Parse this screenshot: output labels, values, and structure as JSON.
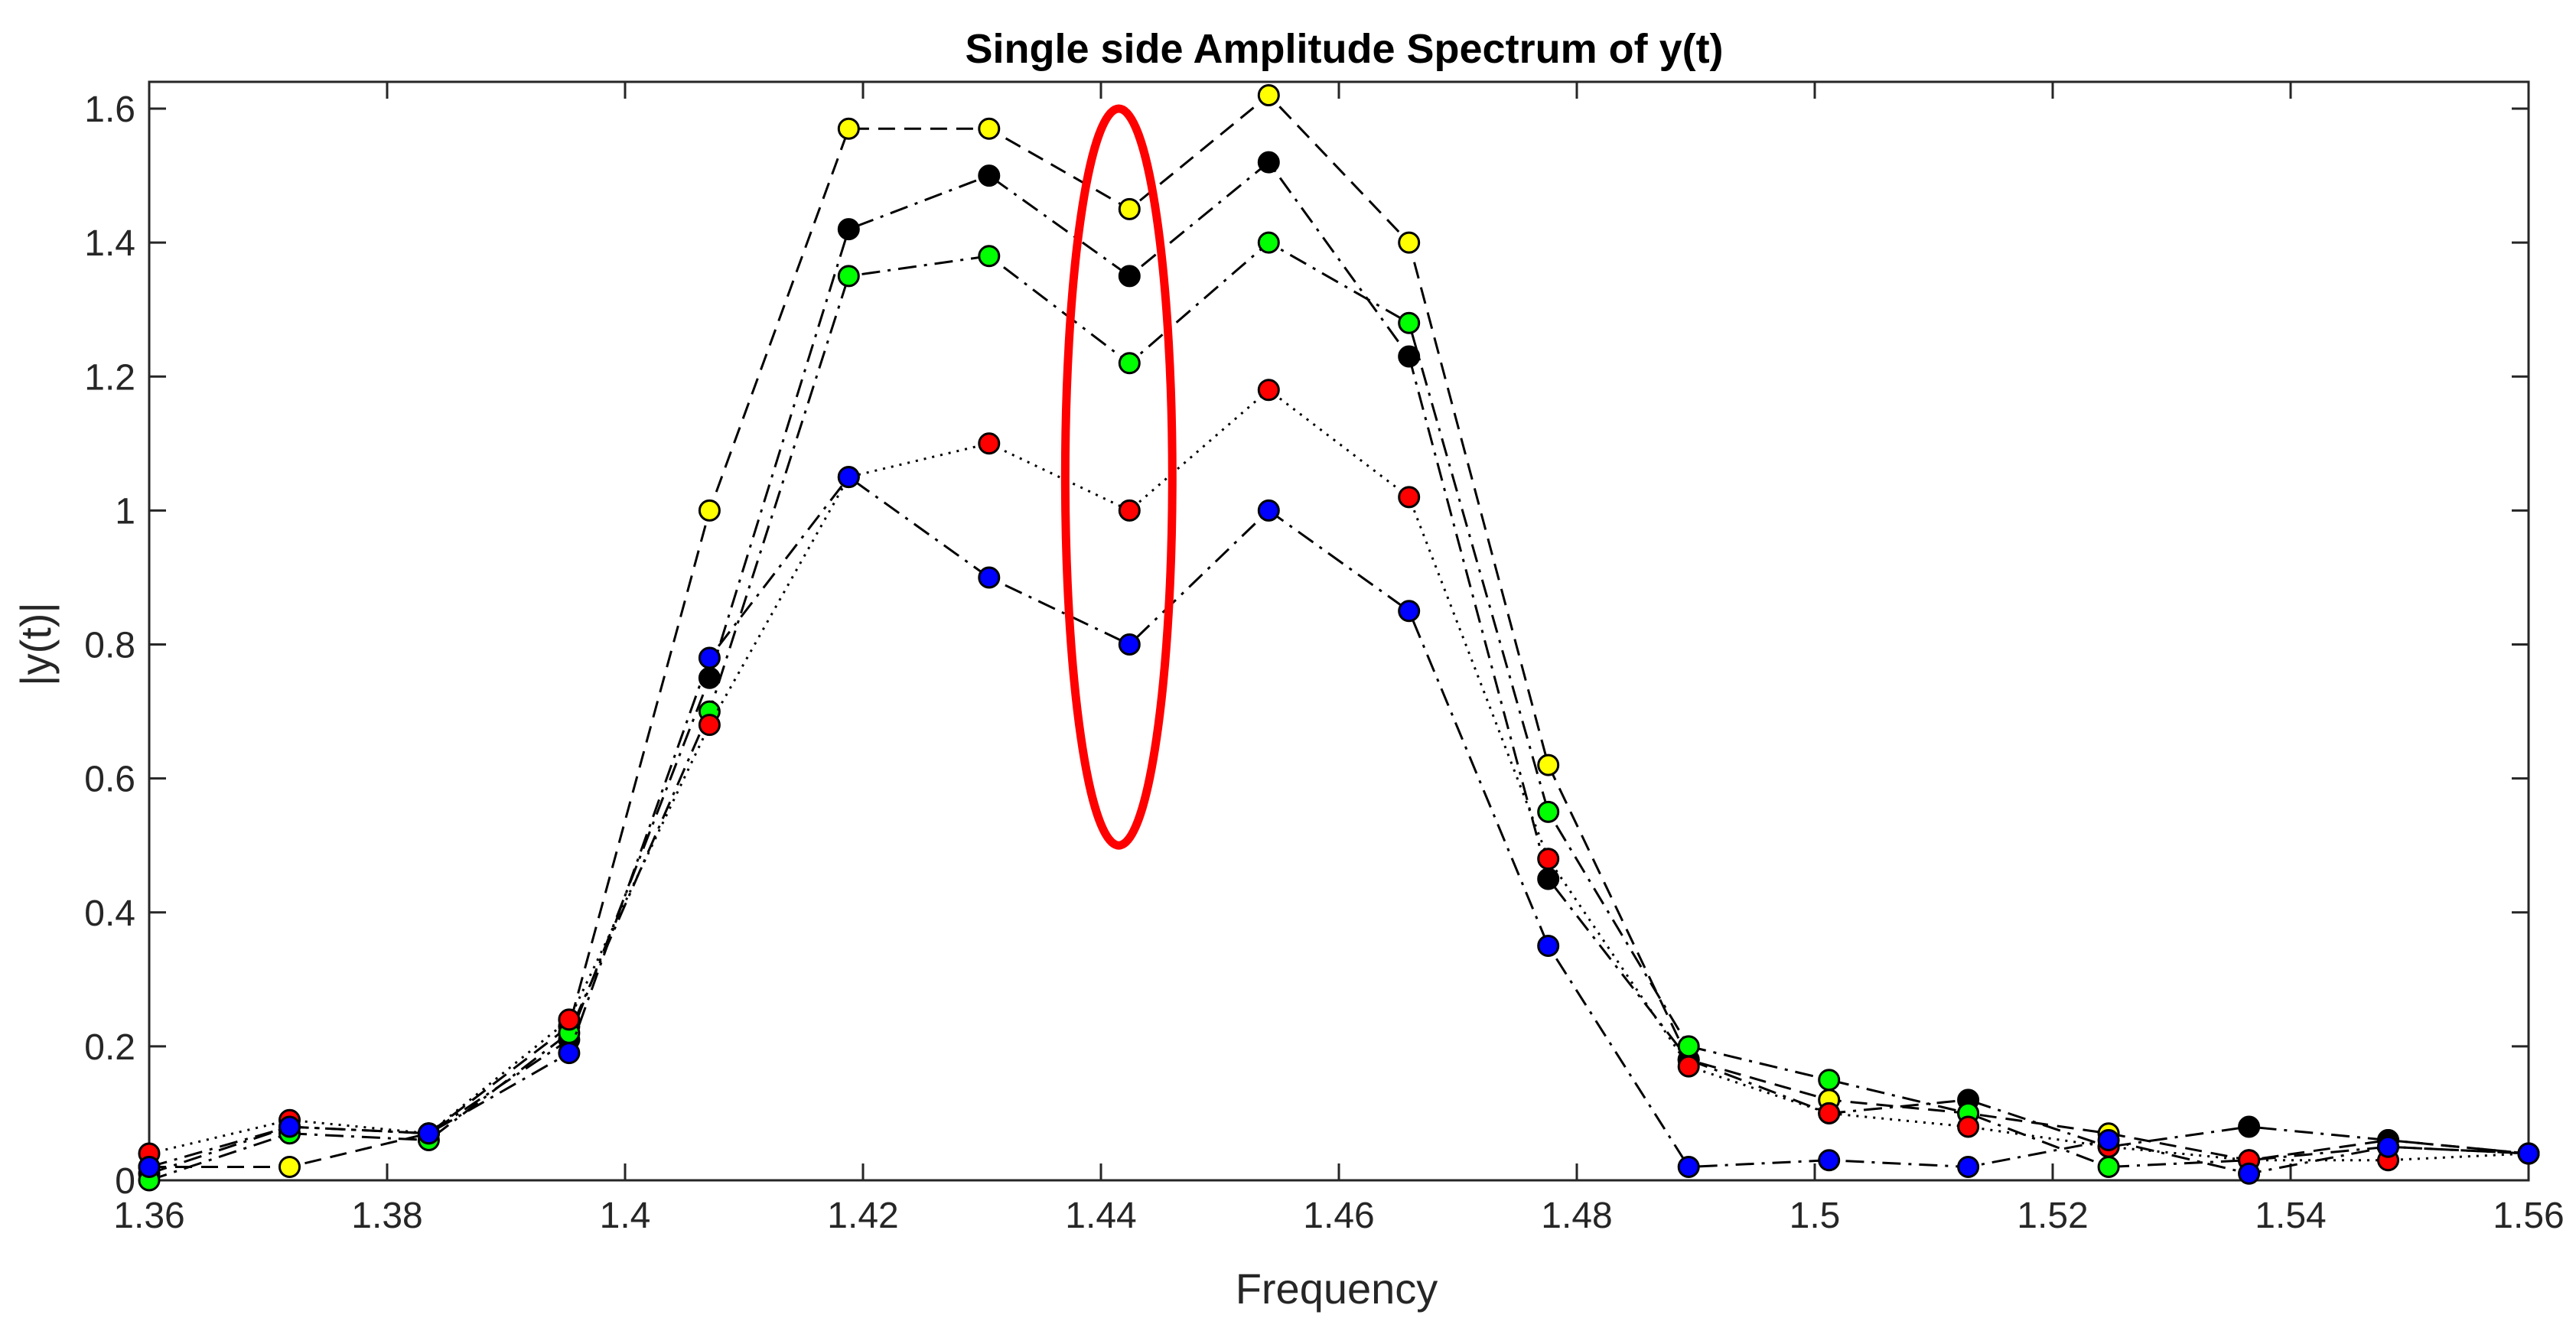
{
  "chart_data": {
    "type": "line",
    "title": "Single side Amplitude Spectrum of y(t)",
    "xlabel": "Frequency",
    "ylabel": "|y(t)|",
    "xlim": [
      1.36,
      1.56
    ],
    "ylim": [
      0,
      1.64
    ],
    "xticks": [
      "1.36",
      "1.38",
      "1.4",
      "1.42",
      "1.44",
      "1.46",
      "1.48",
      "1.5",
      "1.52",
      "1.54",
      "1.56"
    ],
    "yticks": [
      "0",
      "0.2",
      "0.4",
      "0.6",
      "0.8",
      "1",
      "1.2",
      "1.4",
      "1.6"
    ],
    "x": [
      1.36,
      1.3718,
      1.3835,
      1.3953,
      1.4071,
      1.4188,
      1.4306,
      1.4424,
      1.4541,
      1.4659,
      1.4776,
      1.4894,
      1.5012,
      1.5129,
      1.5247,
      1.5365,
      1.5482,
      1.56
    ],
    "series": [
      {
        "name": "yellow",
        "color": "#ffff00",
        "dash": "dashed",
        "values": [
          0.02,
          0.02,
          0.07,
          0.23,
          1.0,
          1.57,
          1.57,
          1.45,
          1.62,
          1.4,
          0.62,
          0.18,
          0.12,
          0.1,
          0.07,
          0.03,
          0.06,
          0.04
        ]
      },
      {
        "name": "black",
        "color": "#000000",
        "dash": "dashdot",
        "values": [
          0.01,
          0.08,
          0.07,
          0.21,
          0.75,
          1.42,
          1.5,
          1.35,
          1.52,
          1.23,
          0.45,
          0.18,
          0.1,
          0.12,
          0.05,
          0.08,
          0.06,
          0.04
        ]
      },
      {
        "name": "green",
        "color": "#00ff00",
        "dash": "dashdot",
        "values": [
          0.0,
          0.07,
          0.06,
          0.22,
          0.7,
          1.35,
          1.38,
          1.22,
          1.4,
          1.28,
          0.55,
          0.2,
          0.15,
          0.1,
          0.02,
          0.03,
          0.05,
          0.04
        ]
      },
      {
        "name": "red",
        "color": "#ff0000",
        "dash": "dotted",
        "values": [
          0.04,
          0.09,
          0.07,
          0.24,
          0.68,
          1.05,
          1.1,
          1.0,
          1.18,
          1.02,
          0.48,
          0.17,
          0.1,
          0.08,
          0.05,
          0.03,
          0.03,
          0.04
        ]
      },
      {
        "name": "blue",
        "color": "#0000ff",
        "dash": "dashdot",
        "values": [
          0.02,
          0.08,
          0.07,
          0.19,
          0.78,
          1.05,
          0.9,
          0.8,
          1.0,
          0.85,
          0.35,
          0.02,
          0.03,
          0.02,
          0.06,
          0.01,
          0.05,
          0.04
        ]
      }
    ],
    "annotations": [
      {
        "type": "ellipse",
        "color": "#ff0000",
        "center_x": 1.4415,
        "center_y": 1.05,
        "radius_x": 0.0045,
        "radius_y": 0.55
      }
    ],
    "grid": false
  }
}
